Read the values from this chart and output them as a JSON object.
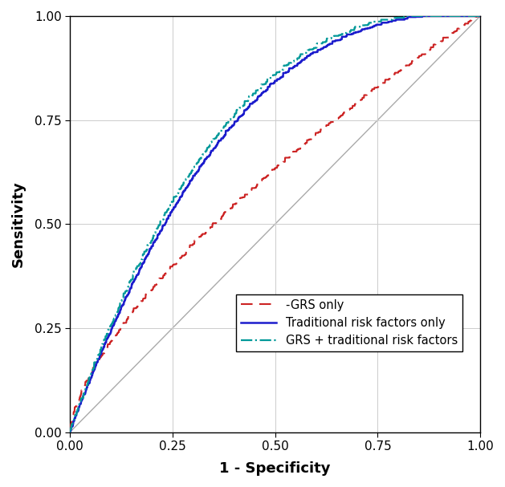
{
  "title": "",
  "xlabel": "1 - Specificity",
  "ylabel": "Sensitivity",
  "xlim": [
    0.0,
    1.0
  ],
  "ylim": [
    0.0,
    1.0
  ],
  "xticks": [
    0.0,
    0.25,
    0.5,
    0.75,
    1.0
  ],
  "yticks": [
    0.0,
    0.25,
    0.5,
    0.75,
    1.0
  ],
  "grs_color": "#cc2222",
  "traditional_color": "#1c1ccc",
  "combined_color": "#009999",
  "diagonal_color": "#aaaaaa",
  "background_color": "#ffffff",
  "grid_color": "#cccccc",
  "legend_labels": [
    "-GRS only",
    "Traditional risk factors only",
    "GRS + traditional risk factors"
  ],
  "figsize": [
    6.29,
    6.07
  ],
  "dpi": 100,
  "xlabel_fontsize": 13,
  "ylabel_fontsize": 13,
  "tick_fontsize": 11,
  "legend_fontsize": 10.5
}
